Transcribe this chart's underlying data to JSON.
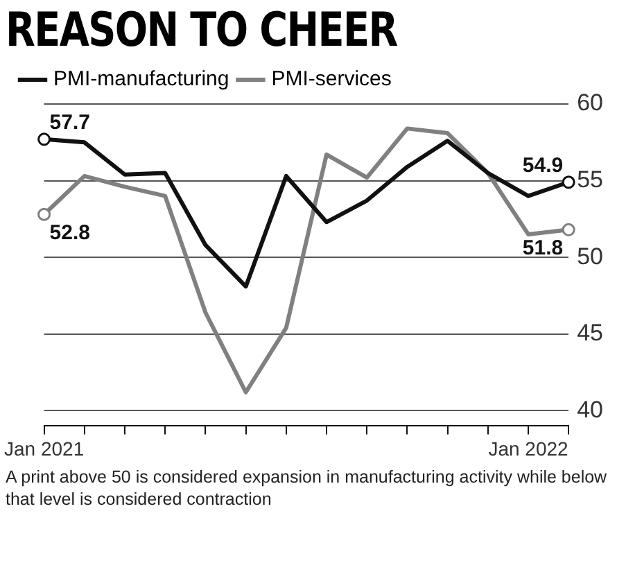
{
  "chart_data": {
    "type": "line",
    "title": "REASON TO CHEER",
    "categories": [
      "Jan 2021",
      null,
      null,
      null,
      null,
      null,
      null,
      null,
      null,
      null,
      null,
      null,
      "Jan 2022",
      null
    ],
    "series": [
      {
        "name": "PMI-manufacturing",
        "color": "#111111",
        "values": [
          57.7,
          57.5,
          55.4,
          55.5,
          50.8,
          48.1,
          55.3,
          52.3,
          53.7,
          55.9,
          57.6,
          55.5,
          54.0,
          54.9
        ],
        "value_labels": [
          "57.7",
          null,
          null,
          null,
          null,
          null,
          null,
          null,
          null,
          null,
          null,
          null,
          null,
          "54.9"
        ]
      },
      {
        "name": "PMI-services",
        "color": "#808080",
        "values": [
          52.8,
          55.3,
          54.6,
          54.0,
          46.4,
          41.2,
          45.4,
          56.7,
          55.2,
          58.4,
          58.1,
          55.5,
          51.5,
          51.8
        ],
        "value_labels": [
          "52.8",
          null,
          null,
          null,
          null,
          null,
          null,
          null,
          null,
          null,
          null,
          null,
          null,
          "51.8"
        ]
      }
    ],
    "ylim": [
      39,
      60
    ],
    "yticks": [
      40,
      45,
      50,
      55,
      60
    ],
    "grid": "y",
    "legend": "top left",
    "line_style": "solid",
    "annotations": [
      "A print above 50 is considered expansion in manufacturing activity while below that level is considered contraction"
    ]
  }
}
